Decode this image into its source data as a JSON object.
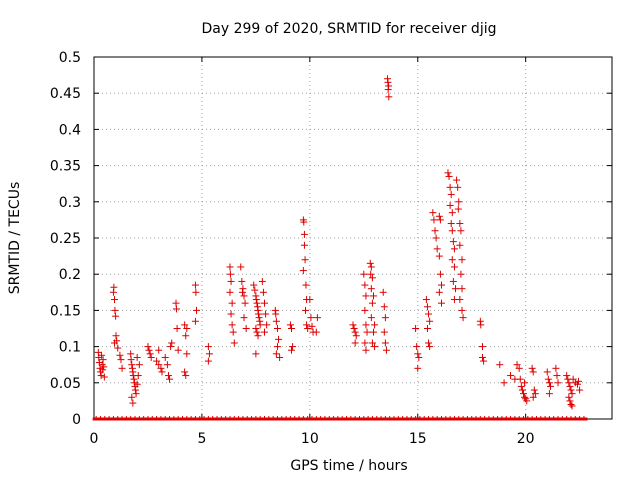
{
  "chart_data": {
    "type": "scatter",
    "title": "Day 299 of 2020, SRMTID for receiver djig",
    "xlabel": "GPS time / hours",
    "ylabel": "SRMTID / TECUs",
    "xlim": [
      0,
      24
    ],
    "ylim": [
      0,
      0.5
    ],
    "xticks": [
      0,
      5,
      10,
      15,
      20
    ],
    "xtick_labels": [
      "0",
      "5",
      "10",
      "15",
      "20"
    ],
    "yticks": [
      0,
      0.05,
      0.1,
      0.15,
      0.2,
      0.25,
      0.3,
      0.35,
      0.4,
      0.45,
      0.5
    ],
    "ytick_labels": [
      "0",
      "0.05",
      "0.1",
      "0.15",
      "0.2",
      "0.25",
      "0.3",
      "0.35",
      "0.4",
      "0.45",
      "0.5"
    ],
    "grid": true,
    "legend": "none",
    "marker": "+",
    "marker_color": "#dd0000",
    "series": [
      {
        "name": "SRMTID",
        "points": [
          [
            0.2,
            0.092
          ],
          [
            0.22,
            0.085
          ],
          [
            0.25,
            0.078
          ],
          [
            0.28,
            0.07
          ],
          [
            0.3,
            0.065
          ],
          [
            0.33,
            0.06
          ],
          [
            0.35,
            0.088
          ],
          [
            0.38,
            0.075
          ],
          [
            0.4,
            0.068
          ],
          [
            0.42,
            0.082
          ],
          [
            0.45,
            0.072
          ],
          [
            0.48,
            0.058
          ],
          [
            0.9,
            0.175
          ],
          [
            0.92,
            0.182
          ],
          [
            0.95,
            0.165
          ],
          [
            0.97,
            0.15
          ],
          [
            1.0,
            0.142
          ],
          [
            1.02,
            0.115
          ],
          [
            1.05,
            0.108
          ],
          [
            0.95,
            0.105
          ],
          [
            1.1,
            0.098
          ],
          [
            1.2,
            0.088
          ],
          [
            1.25,
            0.082
          ],
          [
            1.3,
            0.07
          ],
          [
            1.7,
            0.09
          ],
          [
            1.72,
            0.082
          ],
          [
            1.75,
            0.075
          ],
          [
            1.78,
            0.07
          ],
          [
            1.8,
            0.065
          ],
          [
            1.82,
            0.06
          ],
          [
            1.85,
            0.055
          ],
          [
            1.88,
            0.05
          ],
          [
            1.9,
            0.045
          ],
          [
            1.92,
            0.04
          ],
          [
            1.95,
            0.035
          ],
          [
            1.75,
            0.03
          ],
          [
            1.8,
            0.022
          ],
          [
            2.0,
            0.048
          ],
          [
            2.05,
            0.06
          ],
          [
            2.1,
            0.075
          ],
          [
            2.0,
            0.085
          ],
          [
            2.5,
            0.1
          ],
          [
            2.55,
            0.095
          ],
          [
            2.6,
            0.09
          ],
          [
            2.65,
            0.085
          ],
          [
            2.9,
            0.08
          ],
          [
            3.0,
            0.075
          ],
          [
            3.1,
            0.07
          ],
          [
            3.15,
            0.065
          ],
          [
            3.0,
            0.095
          ],
          [
            3.3,
            0.085
          ],
          [
            3.4,
            0.075
          ],
          [
            3.45,
            0.06
          ],
          [
            3.5,
            0.055
          ],
          [
            3.55,
            0.1
          ],
          [
            3.6,
            0.105
          ],
          [
            3.8,
            0.16
          ],
          [
            3.82,
            0.152
          ],
          [
            3.85,
            0.125
          ],
          [
            3.9,
            0.095
          ],
          [
            4.2,
            0.13
          ],
          [
            4.3,
            0.125
          ],
          [
            4.25,
            0.115
          ],
          [
            4.3,
            0.09
          ],
          [
            4.2,
            0.065
          ],
          [
            4.25,
            0.06
          ],
          [
            4.7,
            0.185
          ],
          [
            4.72,
            0.175
          ],
          [
            4.75,
            0.15
          ],
          [
            4.7,
            0.135
          ],
          [
            5.3,
            0.1
          ],
          [
            5.35,
            0.09
          ],
          [
            5.3,
            0.08
          ],
          [
            6.3,
            0.21
          ],
          [
            6.32,
            0.2
          ],
          [
            6.35,
            0.19
          ],
          [
            6.3,
            0.175
          ],
          [
            6.4,
            0.16
          ],
          [
            6.35,
            0.145
          ],
          [
            6.4,
            0.13
          ],
          [
            6.45,
            0.12
          ],
          [
            6.5,
            0.105
          ],
          [
            6.8,
            0.21
          ],
          [
            6.85,
            0.19
          ],
          [
            6.9,
            0.18
          ],
          [
            6.88,
            0.175
          ],
          [
            6.95,
            0.17
          ],
          [
            7.0,
            0.16
          ],
          [
            6.95,
            0.14
          ],
          [
            7.05,
            0.125
          ],
          [
            7.4,
            0.185
          ],
          [
            7.45,
            0.178
          ],
          [
            7.5,
            0.17
          ],
          [
            7.52,
            0.165
          ],
          [
            7.55,
            0.16
          ],
          [
            7.58,
            0.155
          ],
          [
            7.6,
            0.15
          ],
          [
            7.62,
            0.145
          ],
          [
            7.65,
            0.14
          ],
          [
            7.68,
            0.135
          ],
          [
            7.7,
            0.13
          ],
          [
            7.5,
            0.125
          ],
          [
            7.55,
            0.12
          ],
          [
            7.6,
            0.115
          ],
          [
            7.5,
            0.09
          ],
          [
            7.8,
            0.19
          ],
          [
            7.85,
            0.175
          ],
          [
            7.9,
            0.16
          ],
          [
            7.95,
            0.145
          ],
          [
            8.0,
            0.13
          ],
          [
            7.9,
            0.12
          ],
          [
            8.4,
            0.15
          ],
          [
            8.42,
            0.145
          ],
          [
            8.45,
            0.135
          ],
          [
            8.5,
            0.125
          ],
          [
            8.55,
            0.11
          ],
          [
            8.5,
            0.1
          ],
          [
            8.45,
            0.09
          ],
          [
            8.6,
            0.085
          ],
          [
            9.1,
            0.13
          ],
          [
            9.15,
            0.125
          ],
          [
            9.2,
            0.1
          ],
          [
            9.15,
            0.095
          ],
          [
            9.7,
            0.275
          ],
          [
            9.72,
            0.272
          ],
          [
            9.75,
            0.255
          ],
          [
            9.75,
            0.24
          ],
          [
            9.78,
            0.22
          ],
          [
            9.7,
            0.205
          ],
          [
            9.82,
            0.185
          ],
          [
            9.85,
            0.165
          ],
          [
            9.8,
            0.15
          ],
          [
            9.85,
            0.13
          ],
          [
            9.9,
            0.125
          ],
          [
            10.0,
            0.165
          ],
          [
            10.05,
            0.14
          ],
          [
            10.1,
            0.128
          ],
          [
            10.15,
            0.12
          ],
          [
            10.3,
            0.12
          ],
          [
            10.35,
            0.14
          ],
          [
            12.0,
            0.13
          ],
          [
            12.05,
            0.125
          ],
          [
            12.1,
            0.12
          ],
          [
            12.15,
            0.115
          ],
          [
            12.1,
            0.105
          ],
          [
            12.5,
            0.2
          ],
          [
            12.55,
            0.185
          ],
          [
            12.6,
            0.17
          ],
          [
            12.55,
            0.15
          ],
          [
            12.6,
            0.13
          ],
          [
            12.65,
            0.12
          ],
          [
            12.55,
            0.105
          ],
          [
            12.6,
            0.095
          ],
          [
            12.8,
            0.215
          ],
          [
            12.85,
            0.21
          ],
          [
            12.82,
            0.2
          ],
          [
            12.9,
            0.195
          ],
          [
            12.85,
            0.18
          ],
          [
            12.95,
            0.17
          ],
          [
            12.9,
            0.16
          ],
          [
            12.85,
            0.14
          ],
          [
            13.0,
            0.13
          ],
          [
            12.95,
            0.12
          ],
          [
            12.9,
            0.105
          ],
          [
            13.0,
            0.1
          ],
          [
            13.4,
            0.175
          ],
          [
            13.45,
            0.155
          ],
          [
            13.5,
            0.14
          ],
          [
            13.45,
            0.12
          ],
          [
            13.5,
            0.105
          ],
          [
            13.55,
            0.095
          ],
          [
            13.6,
            0.47
          ],
          [
            13.62,
            0.465
          ],
          [
            13.65,
            0.46
          ],
          [
            13.63,
            0.455
          ],
          [
            13.66,
            0.445
          ],
          [
            14.9,
            0.125
          ],
          [
            14.95,
            0.1
          ],
          [
            15.0,
            0.09
          ],
          [
            15.05,
            0.085
          ],
          [
            15.0,
            0.07
          ],
          [
            15.4,
            0.165
          ],
          [
            15.45,
            0.155
          ],
          [
            15.5,
            0.145
          ],
          [
            15.55,
            0.135
          ],
          [
            15.45,
            0.125
          ],
          [
            15.5,
            0.105
          ],
          [
            15.55,
            0.1
          ],
          [
            15.7,
            0.285
          ],
          [
            15.75,
            0.275
          ],
          [
            15.8,
            0.26
          ],
          [
            15.85,
            0.25
          ],
          [
            15.9,
            0.235
          ],
          [
            16.0,
            0.28
          ],
          [
            16.05,
            0.275
          ],
          [
            16.0,
            0.225
          ],
          [
            16.05,
            0.2
          ],
          [
            16.1,
            0.185
          ],
          [
            16.0,
            0.175
          ],
          [
            16.1,
            0.16
          ],
          [
            16.4,
            0.34
          ],
          [
            16.45,
            0.335
          ],
          [
            16.5,
            0.32
          ],
          [
            16.55,
            0.31
          ],
          [
            16.5,
            0.295
          ],
          [
            16.6,
            0.285
          ],
          [
            16.55,
            0.27
          ],
          [
            16.6,
            0.26
          ],
          [
            16.65,
            0.245
          ],
          [
            16.7,
            0.235
          ],
          [
            16.6,
            0.22
          ],
          [
            16.7,
            0.21
          ],
          [
            16.65,
            0.19
          ],
          [
            16.75,
            0.18
          ],
          [
            16.7,
            0.165
          ],
          [
            16.8,
            0.33
          ],
          [
            16.85,
            0.32
          ],
          [
            16.9,
            0.3
          ],
          [
            16.88,
            0.29
          ],
          [
            16.95,
            0.27
          ],
          [
            17.0,
            0.26
          ],
          [
            16.95,
            0.24
          ],
          [
            17.05,
            0.22
          ],
          [
            17.0,
            0.2
          ],
          [
            17.05,
            0.18
          ],
          [
            16.95,
            0.165
          ],
          [
            17.05,
            0.15
          ],
          [
            17.1,
            0.14
          ],
          [
            17.9,
            0.135
          ],
          [
            17.92,
            0.13
          ],
          [
            18.0,
            0.1
          ],
          [
            18.0,
            0.085
          ],
          [
            18.05,
            0.08
          ],
          [
            18.8,
            0.075
          ],
          [
            19.0,
            0.05
          ],
          [
            19.3,
            0.06
          ],
          [
            19.5,
            0.055
          ],
          [
            19.6,
            0.075
          ],
          [
            19.7,
            0.07
          ],
          [
            19.75,
            0.055
          ],
          [
            19.8,
            0.045
          ],
          [
            19.85,
            0.04
          ],
          [
            19.9,
            0.035
          ],
          [
            19.95,
            0.03
          ],
          [
            20.0,
            0.028
          ],
          [
            20.05,
            0.025
          ],
          [
            19.95,
            0.05
          ],
          [
            20.3,
            0.07
          ],
          [
            20.35,
            0.065
          ],
          [
            20.4,
            0.04
          ],
          [
            20.45,
            0.035
          ],
          [
            20.35,
            0.03
          ],
          [
            21.0,
            0.065
          ],
          [
            21.05,
            0.055
          ],
          [
            21.1,
            0.05
          ],
          [
            21.15,
            0.045
          ],
          [
            21.1,
            0.035
          ],
          [
            21.4,
            0.07
          ],
          [
            21.45,
            0.06
          ],
          [
            21.5,
            0.05
          ],
          [
            21.9,
            0.06
          ],
          [
            21.95,
            0.055
          ],
          [
            22.0,
            0.05
          ],
          [
            22.05,
            0.045
          ],
          [
            22.1,
            0.04
          ],
          [
            22.15,
            0.035
          ],
          [
            22.0,
            0.03
          ],
          [
            22.05,
            0.025
          ],
          [
            22.1,
            0.02
          ],
          [
            22.15,
            0.018
          ],
          [
            22.2,
            0.055
          ],
          [
            22.3,
            0.05
          ],
          [
            22.4,
            0.048
          ],
          [
            22.45,
            0.052
          ],
          [
            22.5,
            0.04
          ]
        ],
        "zero_hours": [
          0.1,
          0.3,
          0.5,
          0.7,
          0.9,
          1.1,
          1.3,
          1.5,
          1.7,
          1.9,
          2.1,
          2.3,
          2.5,
          2.7,
          2.9,
          3.1,
          3.3,
          3.5,
          3.7,
          3.9,
          4.1,
          4.3,
          4.5,
          4.7,
          4.9,
          5.1,
          5.3,
          5.5,
          5.7,
          5.9,
          6.1,
          6.3,
          6.5,
          6.7,
          6.9,
          7.1,
          7.3,
          7.5,
          7.7,
          7.9,
          8.1,
          8.3,
          8.5,
          8.7,
          8.9,
          9.1,
          9.3,
          9.5,
          9.7,
          9.9,
          10.1,
          10.3,
          10.5,
          10.7,
          10.9,
          11.1,
          11.3,
          11.5,
          11.7,
          11.9,
          12.1,
          12.3,
          12.5,
          12.7,
          12.9,
          13.1,
          13.3,
          13.5,
          13.7,
          13.9,
          14.1,
          14.3,
          14.5,
          14.7,
          14.9,
          15.1,
          15.3,
          15.5,
          15.7,
          15.9,
          16.1,
          16.3,
          16.5,
          16.7,
          16.9,
          17.1,
          17.3,
          17.5,
          17.7,
          17.9,
          18.1,
          18.3,
          18.5,
          18.7,
          18.9,
          19.1,
          19.3,
          19.5,
          19.7,
          19.9,
          20.1,
          20.3,
          20.5,
          20.7,
          20.9,
          21.1,
          21.3,
          21.5,
          21.7,
          21.9,
          22.1,
          22.3,
          22.5,
          22.7
        ]
      }
    ]
  }
}
